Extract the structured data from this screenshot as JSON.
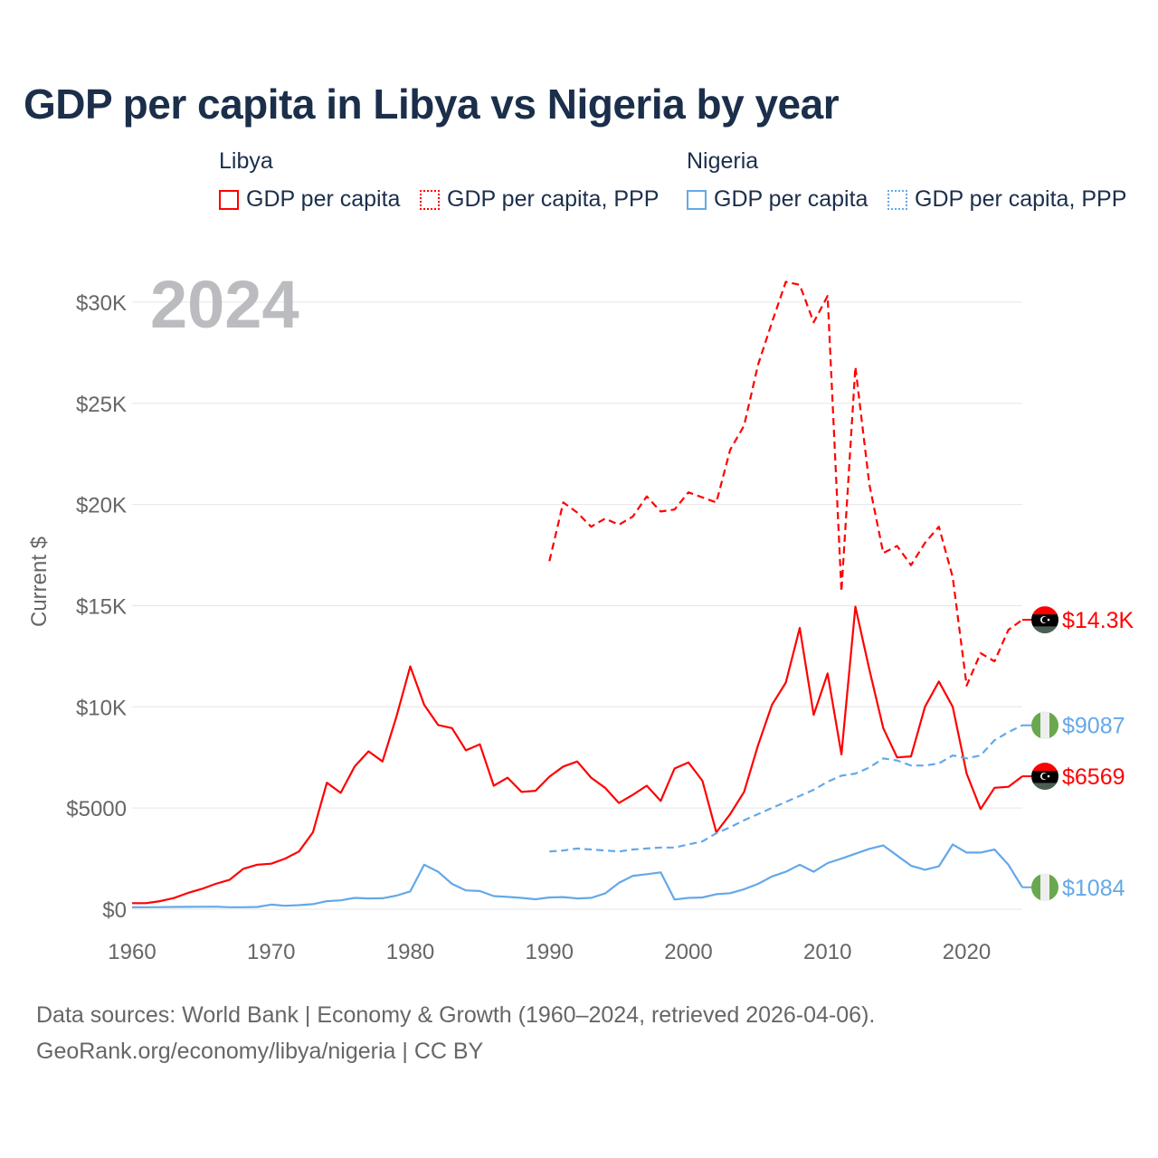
{
  "chart_data": {
    "type": "line",
    "title": "GDP per capita in Libya vs Nigeria by year",
    "year_label": "2024",
    "ylabel": "Current $",
    "xlabel": "",
    "xlim": [
      1960,
      2024
    ],
    "ylim": [
      0,
      32000
    ],
    "grid": true,
    "x_ticks": [
      "1960",
      "1970",
      "1980",
      "1990",
      "2000",
      "2010",
      "2020"
    ],
    "y_ticks": [
      {
        "value": 0,
        "label": "$0"
      },
      {
        "value": 5000,
        "label": "$5000"
      },
      {
        "value": 10000,
        "label": "$10K"
      },
      {
        "value": 15000,
        "label": "$15K"
      },
      {
        "value": 20000,
        "label": "$20K"
      },
      {
        "value": 25000,
        "label": "$25K"
      },
      {
        "value": 30000,
        "label": "$30K"
      }
    ],
    "legend": {
      "placement": "top",
      "groups": [
        {
          "name": "Libya",
          "items": [
            "GDP per capita",
            "GDP per capita, PPP"
          ]
        },
        {
          "name": "Nigeria",
          "items": [
            "GDP per capita",
            "GDP per capita, PPP"
          ]
        }
      ]
    },
    "series": [
      {
        "name": "Libya GDP per capita",
        "country": "Libya",
        "color": "#ff0000",
        "dashed": false,
        "start": 1960,
        "end_label": "$6569",
        "values": [
          300,
          300,
          400,
          550,
          800,
          1000,
          1250,
          1450,
          2000,
          2200,
          2250,
          2500,
          2850,
          3800,
          6250,
          5750,
          7050,
          7800,
          7300,
          9500,
          12000,
          10100,
          9100,
          8950,
          7850,
          8150,
          6100,
          6500,
          5800,
          5850,
          6550,
          7050,
          7300,
          6500,
          6000,
          5250,
          5650,
          6100,
          5350,
          6950,
          7250,
          6350,
          3800,
          4700,
          5800,
          8100,
          10100,
          11200,
          13900,
          9600,
          11650,
          7650,
          14950,
          11850,
          8950,
          7500,
          7550,
          10000,
          11250,
          10000,
          6700,
          4950,
          6000,
          6050,
          6569
        ]
      },
      {
        "name": "Libya GDP per capita, PPP",
        "country": "Libya",
        "color": "#ff0000",
        "dashed": true,
        "start": 1990,
        "end_label": "$14.3K",
        "values": [
          17200,
          20100,
          19600,
          18900,
          19300,
          19000,
          19400,
          20400,
          19650,
          19750,
          20600,
          20350,
          20100,
          22700,
          23900,
          26900,
          29000,
          31000,
          30850,
          29000,
          30300,
          15700,
          26800,
          21000,
          17600,
          17950,
          17000,
          18100,
          18900,
          16400,
          11050,
          12650,
          12250,
          13800,
          14300
        ]
      },
      {
        "name": "Nigeria GDP per capita",
        "country": "Nigeria",
        "color": "#64a8e8",
        "dashed": false,
        "start": 1960,
        "end_label": "$1084",
        "values": [
          95,
          100,
          105,
          110,
          115,
          120,
          125,
          100,
          100,
          110,
          230,
          170,
          200,
          250,
          400,
          440,
          560,
          530,
          540,
          670,
          880,
          2200,
          1850,
          1250,
          930,
          900,
          650,
          610,
          560,
          490,
          580,
          600,
          530,
          560,
          780,
          1300,
          1650,
          1730,
          1820,
          480,
          560,
          580,
          740,
          790,
          990,
          1250,
          1620,
          1850,
          2200,
          1850,
          2280,
          2500,
          2740,
          2980,
          3150,
          2650,
          2150,
          1950,
          2120,
          3200,
          2800,
          2800,
          2950,
          2200,
          1084
        ]
      },
      {
        "name": "Nigeria GDP per capita, PPP",
        "country": "Nigeria",
        "color": "#64a8e8",
        "dashed": true,
        "start": 1990,
        "end_label": "$9087",
        "values": [
          2850,
          2900,
          3000,
          2950,
          2900,
          2850,
          2950,
          3000,
          3050,
          3050,
          3200,
          3350,
          3750,
          4050,
          4400,
          4700,
          5000,
          5300,
          5600,
          5900,
          6300,
          6600,
          6700,
          7000,
          7450,
          7350,
          7100,
          7100,
          7200,
          7600,
          7450,
          7600,
          8350,
          8750,
          9087
        ]
      }
    ],
    "source_lines": [
      "Data sources: World Bank | Economy & Growth (1960–2024, retrieved 2026-04-06).",
      "GeoRank.org/economy/libya/nigeria | CC BY"
    ]
  }
}
